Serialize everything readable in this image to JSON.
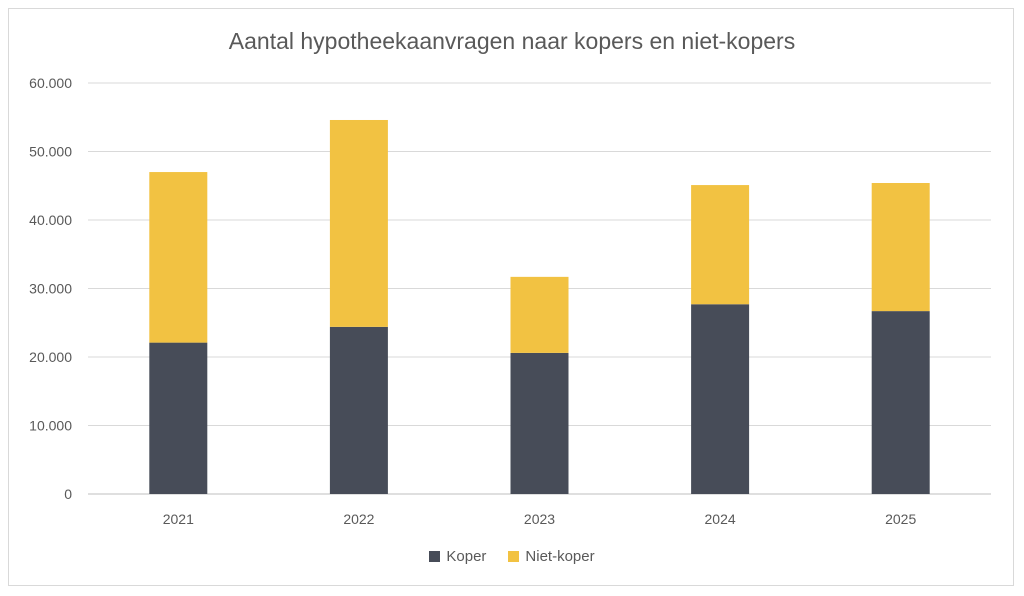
{
  "chart_data": {
    "type": "bar",
    "stacked": true,
    "title": "Aantal hypotheekaanvragen naar kopers en niet-kopers",
    "xlabel": "",
    "ylabel": "",
    "categories": [
      "2021",
      "2022",
      "2023",
      "2024",
      "2025"
    ],
    "series": [
      {
        "name": "Koper",
        "color": "#474c58",
        "values": [
          22100,
          24400,
          20600,
          27700,
          26700
        ]
      },
      {
        "name": "Niet-koper",
        "color": "#f2c242",
        "values": [
          24900,
          30200,
          11100,
          17400,
          18700
        ]
      }
    ],
    "ylim": [
      0,
      60000
    ],
    "yticks": [
      0,
      10000,
      20000,
      30000,
      40000,
      50000,
      60000
    ],
    "ytick_labels": [
      "0",
      "10.000",
      "20.000",
      "30.000",
      "40.000",
      "50.000",
      "60.000"
    ],
    "grid": true,
    "legend_position": "bottom"
  }
}
